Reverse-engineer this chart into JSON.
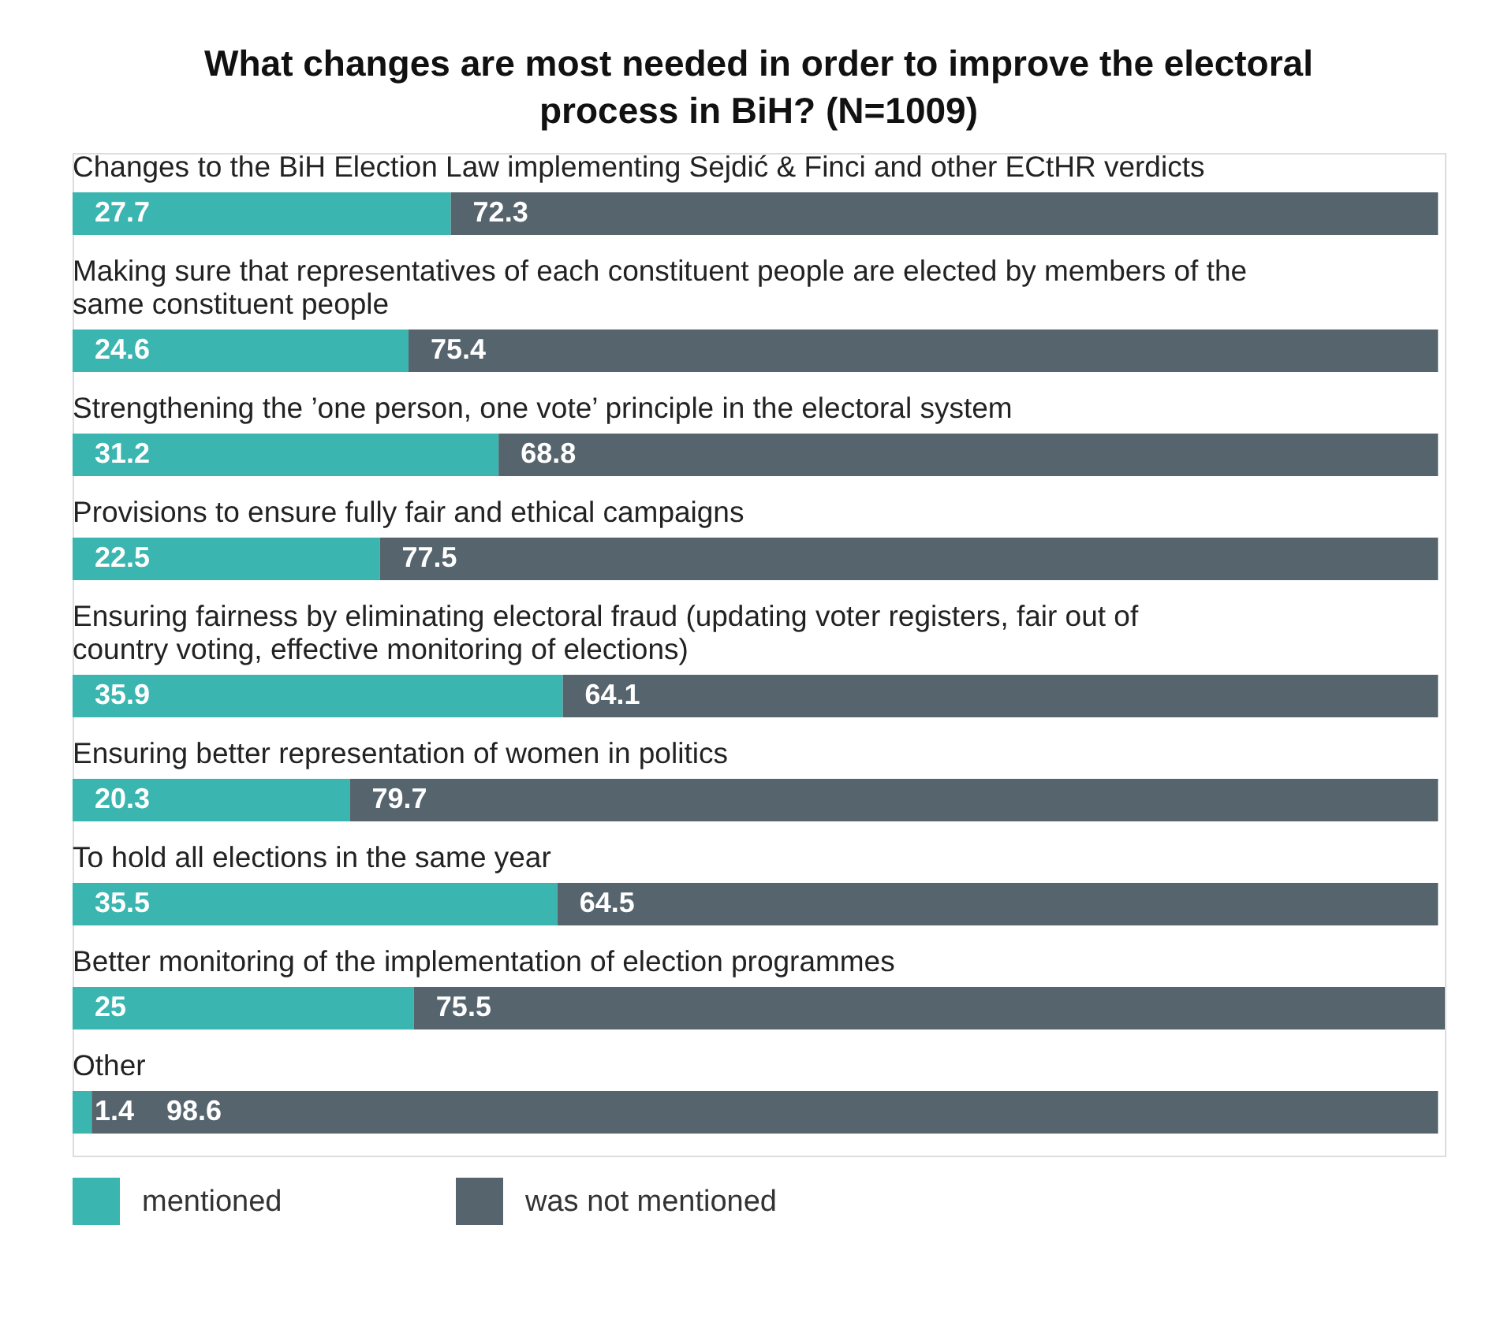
{
  "chart_data": {
    "type": "bar",
    "orientation": "horizontal",
    "stacked": true,
    "data_labels": true,
    "legend": "bottom",
    "title": "What changes are most needed in order to improve the electoral process in BiH? (N=1009)",
    "categories": [
      "Changes to the BiH Election Law implementing Sejdić & Finci and other ECtHR verdicts",
      "Making sure that representatives of each constituent people are elected by members of the same constituent people",
      "Strengthening the ’one person, one vote’ principle in the electoral system",
      "Provisions to ensure fully fair and ethical campaigns",
      "Ensuring fairness by eliminating electoral fraud (updating voter registers, fair out of country voting, effective monitoring of elections)",
      "Ensuring better representation of women in politics",
      "To hold all elections in the same year",
      "Better monitoring of the implementation of election programmes",
      "Other"
    ],
    "series": [
      {
        "name": "mentioned",
        "color": "#3ab5b0",
        "values": [
          27.7,
          24.6,
          31.2,
          22.5,
          35.9,
          20.3,
          35.5,
          25,
          1.4
        ]
      },
      {
        "name": "was not mentioned",
        "color": "#56646d",
        "values": [
          72.3,
          75.4,
          68.8,
          77.5,
          64.1,
          79.7,
          64.5,
          75.5,
          98.6
        ]
      }
    ]
  }
}
